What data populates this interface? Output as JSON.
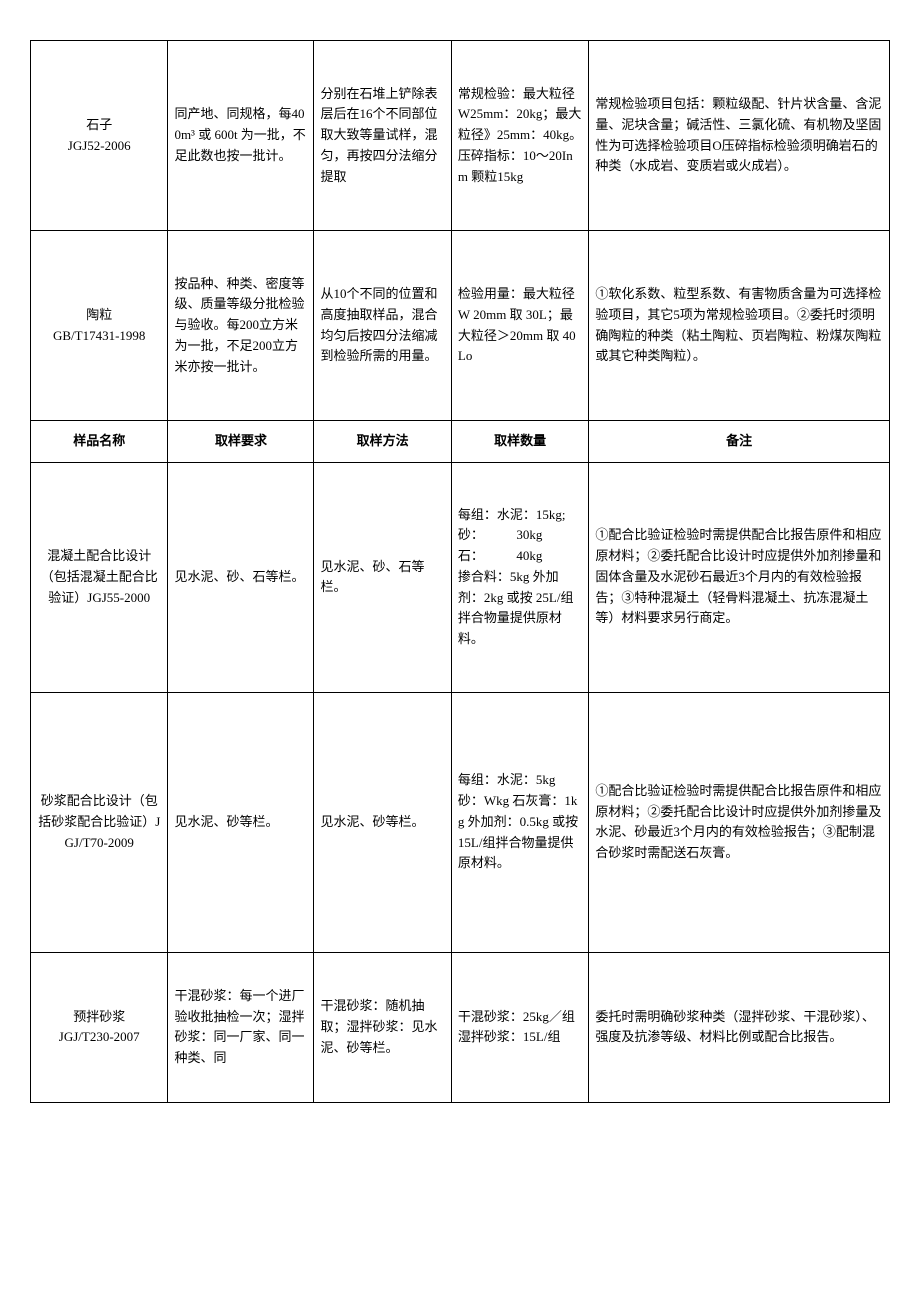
{
  "table": {
    "rows": [
      {
        "name_line1": "石子",
        "name_line2": "JGJ52-2006",
        "req": "同产地、同规格，每400m³ 或 600t 为一批，不足此数也按一批计。",
        "method": "分别在石堆上铲除表层后在16个不同部位取大致等量试样，混匀，再按四分法缩分提取",
        "qty": "常规检验：最大粒径W25mm：20kg；最大粒径》25mm：40kg。压碎指标：10～20Inm 颗粒15kg",
        "note": "常规检验项目包括：颗粒级配、针片状含量、含泥量、泥块含量；碱活性、三氯化硫、有机物及坚固性为可选择检验项目O压碎指标检验须明确岩石的种类（水成岩、变质岩或火成岩）。"
      },
      {
        "name_line1": "陶粒",
        "name_line2": "GB/T17431-1998",
        "req": "按品种、种类、密度等级、质量等级分批检验与验收。每200立方米为一批，不足200立方米亦按一批计。",
        "method": "从10个不同的位置和高度抽取样品，混合均匀后按四分法缩减到检验所需的用量。",
        "qty": "检验用量：最大粒径W 20mm 取 30L；最大粒径＞20mm 取 40Lo",
        "note": "①软化系数、粒型系数、有害物质含量为可选择检验项目，其它5项为常规检验项目。②委托时须明确陶粒的种类（粘土陶粒、页岩陶粒、粉煤灰陶粒或其它种类陶粒）。"
      }
    ],
    "headers": {
      "col1": "样品名称",
      "col2": "取样要求",
      "col3": "取样方法",
      "col4": "取样数量",
      "col5": "备注"
    },
    "rows2": [
      {
        "name_line1": "混凝土配合比设计（包括混凝土配合比验证）JGJ55-2000",
        "req": "见水泥、砂、石等栏。",
        "method": "见水泥、砂、石等栏。",
        "qty": "每组：水泥：15kg;\n砂：　　　30kg\n石：　　　40kg\n掺合料：5kg 外加剂：2kg 或按 25L/组拌合物量提供原材料。",
        "note": "①配合比验证检验时需提供配合比报告原件和相应原材料；②委托配合比设计时应提供外加剂掺量和固体含量及水泥砂石最近3个月内的有效检验报告；③特种混凝土（轻骨料混凝土、抗冻混凝土等）材料要求另行商定。"
      },
      {
        "name_line1": "砂浆配合比设计（包括砂浆配合比验证）JGJ/T70-2009",
        "req": "见水泥、砂等栏。",
        "method": "见水泥、砂等栏。",
        "qty": "每组：水泥：5kg 砂：Wkg 石灰膏：1kg 外加剂：0.5kg 或按 15L/组拌合物量提供原材料。",
        "note": "①配合比验证检验时需提供配合比报告原件和相应原材料；②委托配合比设计时应提供外加剂掺量及水泥、砂最近3个月内的有效检验报告；③配制混合砂浆时需配送石灰膏。"
      },
      {
        "name_line1": "预拌砂浆",
        "name_line2": "JGJ/T230-2007",
        "req": "干混砂浆：每一个进厂验收批抽检一次；湿拌砂浆：同一厂家、同一种类、同",
        "method": "干混砂浆：随机抽取；湿拌砂浆：见水泥、砂等栏。",
        "qty": "干混砂浆：25kg／组 湿拌砂浆：15L/组",
        "note": "委托时需明确砂浆种类（湿拌砂浆、干混砂浆）、强度及抗渗等级、材料比例或配合比报告。"
      }
    ]
  }
}
